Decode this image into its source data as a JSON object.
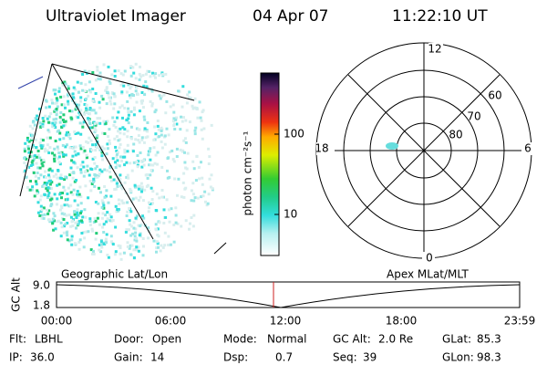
{
  "header": {
    "title": "Ultraviolet Imager",
    "date": "04 Apr 07",
    "time": "11:22:10 UT"
  },
  "colorbar": {
    "label": "photon cm⁻²s⁻¹",
    "ticks": [
      "100",
      "10"
    ]
  },
  "polar": {
    "mlt_labels": [
      "12",
      "18",
      "6",
      "0"
    ],
    "lat_labels": [
      "60",
      "70",
      "80"
    ]
  },
  "timeline": {
    "left_title": "Geographic Lat/Lon",
    "right_title": "Apex MLat/MLT",
    "y_label": "GC Alt",
    "y_ticks": [
      "9.0",
      "1.8"
    ],
    "x_ticks": [
      "00:00",
      "06:00",
      "12:00",
      "18:00",
      "23:59"
    ]
  },
  "footer": {
    "rows": [
      [
        {
          "label": "Flt:",
          "value": "LBHL"
        },
        {
          "label": "Door:",
          "value": "Open"
        },
        {
          "label": "Mode:",
          "value": "Normal"
        },
        {
          "label": "GC Alt:",
          "value": "2.0 Re"
        },
        {
          "label": "GLat:",
          "value": "85.3"
        }
      ],
      [
        {
          "label": "IP:",
          "value": "36.0"
        },
        {
          "label": "Gain:",
          "value": "14"
        },
        {
          "label": "Dsp:",
          "value": "0.7"
        },
        {
          "label": "Seq:",
          "value": "39"
        },
        {
          "label": "GLon:",
          "value": "98.3"
        }
      ]
    ]
  }
}
